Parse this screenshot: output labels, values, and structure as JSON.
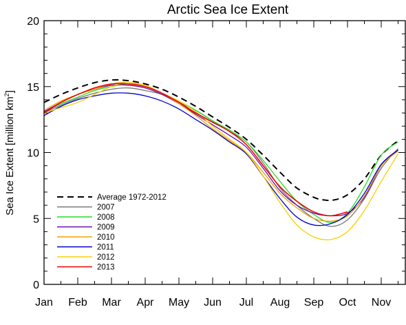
{
  "chart_data": {
    "type": "line",
    "title": "Arctic Sea Ice Extent",
    "ylabel": "Sea Ice Extent [million km",
    "ylabel_sup": "2",
    "ylabel_end": "]",
    "xlabel": "",
    "ylim": [
      0,
      20
    ],
    "xlim": [
      1,
      12
    ],
    "yticks": [
      0,
      5,
      10,
      15,
      20
    ],
    "y_minor_step": 1,
    "xtick_labels": [
      "Jan",
      "Feb",
      "Mar",
      "Apr",
      "May",
      "Jun",
      "Jul",
      "Aug",
      "Sep",
      "Oct",
      "Nov"
    ],
    "grid": false,
    "legend_position": "lower-left",
    "series": [
      {
        "name": "Average 1972-2012",
        "color": "#000000",
        "dashed": true,
        "width": 2,
        "points": [
          [
            1,
            13.8
          ],
          [
            1.5,
            14.4
          ],
          [
            2,
            14.9
          ],
          [
            2.5,
            15.3
          ],
          [
            3,
            15.5
          ],
          [
            3.5,
            15.45
          ],
          [
            4,
            15.2
          ],
          [
            4.5,
            14.8
          ],
          [
            5,
            14.2
          ],
          [
            5.5,
            13.5
          ],
          [
            6,
            12.7
          ],
          [
            6.5,
            11.9
          ],
          [
            7,
            11.0
          ],
          [
            7.5,
            9.8
          ],
          [
            8,
            8.5
          ],
          [
            8.5,
            7.3
          ],
          [
            9,
            6.6
          ],
          [
            9.3,
            6.4
          ],
          [
            9.6,
            6.4
          ],
          [
            10,
            6.8
          ],
          [
            10.5,
            8.0
          ],
          [
            11,
            9.8
          ],
          [
            11.5,
            10.9
          ]
        ]
      },
      {
        "name": "2007",
        "color": "#777777",
        "dashed": false,
        "width": 1.3,
        "points": [
          [
            1,
            13.0
          ],
          [
            1.5,
            13.6
          ],
          [
            2,
            14.1
          ],
          [
            2.5,
            14.5
          ],
          [
            3,
            14.8
          ],
          [
            3.5,
            14.9
          ],
          [
            4,
            14.7
          ],
          [
            4.5,
            14.4
          ],
          [
            5,
            13.8
          ],
          [
            5.5,
            13.2
          ],
          [
            6,
            12.4
          ],
          [
            6.5,
            11.6
          ],
          [
            7,
            10.8
          ],
          [
            7.5,
            9.2
          ],
          [
            8,
            7.3
          ],
          [
            8.5,
            6.0
          ],
          [
            9,
            5.0
          ],
          [
            9.5,
            4.4
          ],
          [
            10,
            4.9
          ],
          [
            10.5,
            6.5
          ],
          [
            11,
            8.8
          ],
          [
            11.5,
            10.3
          ]
        ]
      },
      {
        "name": "2008",
        "color": "#22dd22",
        "dashed": false,
        "width": 1.3,
        "points": [
          [
            1,
            13.1
          ],
          [
            1.5,
            13.7
          ],
          [
            2,
            14.2
          ],
          [
            2.5,
            14.7
          ],
          [
            3,
            15.0
          ],
          [
            3.5,
            15.2
          ],
          [
            4,
            15.0
          ],
          [
            4.5,
            14.5
          ],
          [
            5,
            13.9
          ],
          [
            5.5,
            13.2
          ],
          [
            6,
            12.4
          ],
          [
            6.5,
            11.7
          ],
          [
            7,
            10.8
          ],
          [
            7.5,
            9.4
          ],
          [
            8,
            7.8
          ],
          [
            8.5,
            6.3
          ],
          [
            9,
            5.3
          ],
          [
            9.5,
            4.7
          ],
          [
            10,
            5.4
          ],
          [
            10.5,
            7.4
          ],
          [
            11,
            9.8
          ],
          [
            11.5,
            10.8
          ]
        ]
      },
      {
        "name": "2009",
        "color": "#6a0dad",
        "dashed": false,
        "width": 1.3,
        "points": [
          [
            1,
            13.1
          ],
          [
            1.5,
            13.8
          ],
          [
            2,
            14.4
          ],
          [
            2.5,
            14.8
          ],
          [
            3,
            15.1
          ],
          [
            3.5,
            15.1
          ],
          [
            4,
            14.9
          ],
          [
            4.5,
            14.4
          ],
          [
            5,
            13.7
          ],
          [
            5.5,
            12.9
          ],
          [
            6,
            12.1
          ],
          [
            6.5,
            11.3
          ],
          [
            7,
            10.4
          ],
          [
            7.5,
            8.8
          ],
          [
            8,
            7.1
          ],
          [
            8.5,
            6.0
          ],
          [
            9,
            5.4
          ],
          [
            9.5,
            5.2
          ],
          [
            10,
            5.4
          ],
          [
            10.5,
            6.6
          ],
          [
            11,
            9.0
          ],
          [
            11.5,
            10.2
          ]
        ]
      },
      {
        "name": "2010",
        "color": "#f0a000",
        "dashed": false,
        "width": 1.3,
        "points": [
          [
            1,
            13.2
          ],
          [
            1.5,
            13.9
          ],
          [
            2,
            14.4
          ],
          [
            2.5,
            14.8
          ],
          [
            3,
            15.2
          ],
          [
            3.5,
            15.3
          ],
          [
            4,
            15.0
          ],
          [
            4.5,
            14.5
          ],
          [
            5,
            13.7
          ],
          [
            5.5,
            12.8
          ],
          [
            6,
            11.8
          ],
          [
            6.5,
            10.9
          ],
          [
            7,
            10.0
          ],
          [
            7.5,
            8.5
          ],
          [
            8,
            6.9
          ],
          [
            8.5,
            5.8
          ],
          [
            9,
            5.0
          ],
          [
            9.5,
            4.8
          ],
          [
            10,
            5.2
          ],
          [
            10.5,
            6.7
          ],
          [
            11,
            9.0
          ],
          [
            11.5,
            10.1
          ]
        ]
      },
      {
        "name": "2011",
        "color": "#0000cc",
        "dashed": false,
        "width": 1.3,
        "points": [
          [
            1,
            12.8
          ],
          [
            1.5,
            13.5
          ],
          [
            2,
            14.0
          ],
          [
            2.5,
            14.3
          ],
          [
            3,
            14.5
          ],
          [
            3.5,
            14.5
          ],
          [
            4,
            14.3
          ],
          [
            4.5,
            13.9
          ],
          [
            5,
            13.3
          ],
          [
            5.5,
            12.5
          ],
          [
            6,
            11.7
          ],
          [
            6.5,
            10.8
          ],
          [
            7,
            9.9
          ],
          [
            7.5,
            8.2
          ],
          [
            8,
            6.5
          ],
          [
            8.5,
            5.1
          ],
          [
            9,
            4.5
          ],
          [
            9.5,
            4.6
          ],
          [
            10,
            5.3
          ],
          [
            10.5,
            6.9
          ],
          [
            11,
            9.1
          ],
          [
            11.5,
            10.2
          ]
        ]
      },
      {
        "name": "2012",
        "color": "#f5d000",
        "dashed": false,
        "width": 1.3,
        "points": [
          [
            1,
            13.0
          ],
          [
            1.5,
            13.4
          ],
          [
            2,
            13.8
          ],
          [
            2.5,
            14.4
          ],
          [
            3,
            15.0
          ],
          [
            3.5,
            15.3
          ],
          [
            4,
            15.1
          ],
          [
            4.5,
            14.5
          ],
          [
            5,
            13.9
          ],
          [
            5.5,
            13.1
          ],
          [
            6,
            12.0
          ],
          [
            6.5,
            11.0
          ],
          [
            7,
            10.0
          ],
          [
            7.5,
            8.2
          ],
          [
            8,
            6.2
          ],
          [
            8.5,
            4.5
          ],
          [
            9,
            3.6
          ],
          [
            9.5,
            3.4
          ],
          [
            10,
            4.0
          ],
          [
            10.5,
            5.6
          ],
          [
            11,
            7.8
          ],
          [
            11.5,
            9.9
          ]
        ]
      },
      {
        "name": "2013",
        "color": "#ee0000",
        "dashed": false,
        "width": 1.6,
        "points": [
          [
            1,
            13.0
          ],
          [
            1.5,
            13.8
          ],
          [
            2,
            14.4
          ],
          [
            2.5,
            14.9
          ],
          [
            3,
            15.2
          ],
          [
            3.5,
            15.2
          ],
          [
            4,
            15.0
          ],
          [
            4.5,
            14.5
          ],
          [
            5,
            13.8
          ],
          [
            5.5,
            13.0
          ],
          [
            6,
            12.3
          ],
          [
            6.5,
            11.6
          ],
          [
            7,
            10.6
          ],
          [
            7.5,
            9.0
          ],
          [
            8,
            7.4
          ],
          [
            8.5,
            6.3
          ],
          [
            9,
            5.5
          ],
          [
            9.5,
            5.2
          ],
          [
            10,
            5.5
          ]
        ]
      }
    ]
  }
}
